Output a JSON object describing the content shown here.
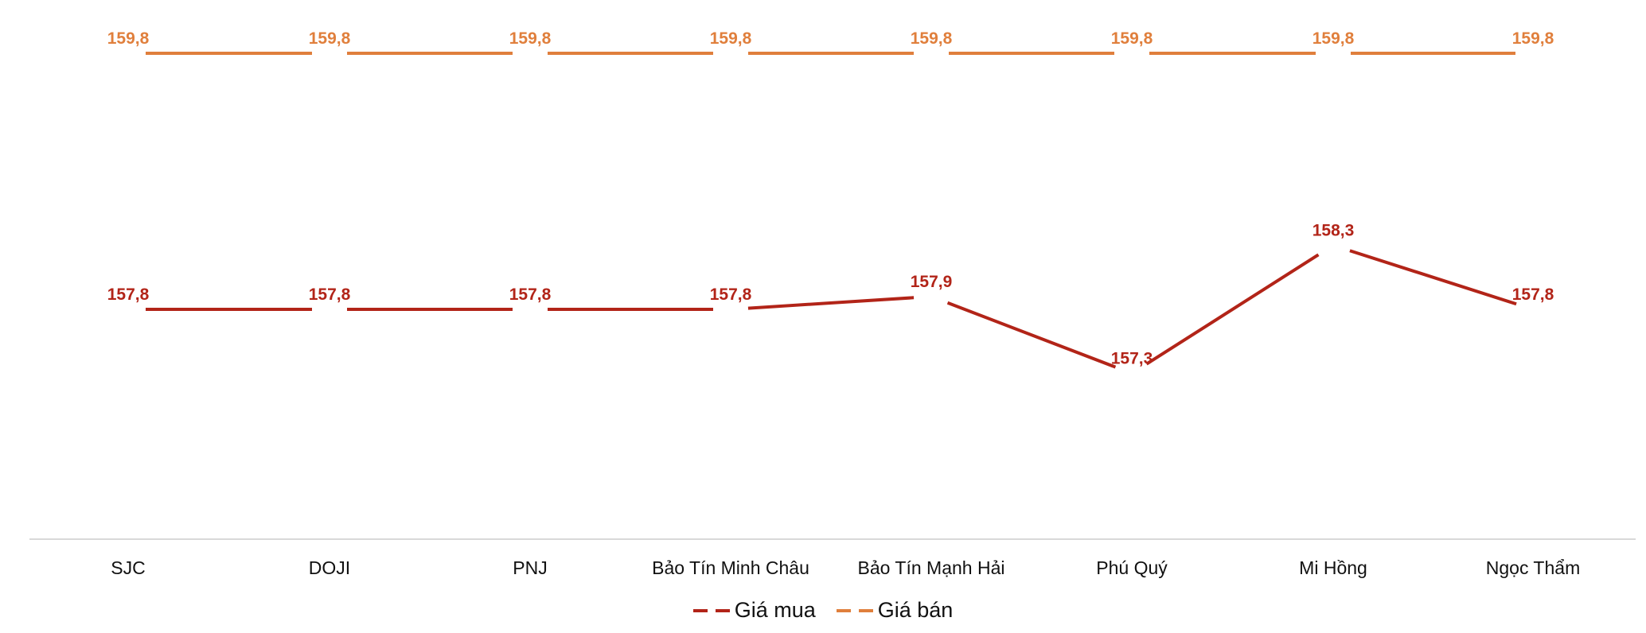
{
  "chart_data": {
    "type": "line",
    "title": "",
    "xlabel": "",
    "ylabel": "",
    "categories": [
      "SJC",
      "DOJI",
      "PNJ",
      "Bảo Tín Minh Châu",
      "Bảo Tín Mạnh Hải",
      "Phú Quý",
      "Mi Hồng",
      "Ngọc Thẩm"
    ],
    "series": [
      {
        "name": "Giá mua",
        "color": "#B22418",
        "values": [
          157.8,
          157.8,
          157.8,
          157.8,
          157.9,
          157.3,
          158.3,
          157.8
        ],
        "labels": [
          "157,8",
          "157,8",
          "157,8",
          "157,8",
          "157,9",
          "157,3",
          "158,3",
          "157,8"
        ]
      },
      {
        "name": "Giá bán",
        "color": "#E07F3C",
        "values": [
          159.8,
          159.8,
          159.8,
          159.8,
          159.8,
          159.8,
          159.8,
          159.8
        ],
        "labels": [
          "159,8",
          "159,8",
          "159,8",
          "159,8",
          "159,8",
          "159,8",
          "159,8",
          "159,8"
        ]
      }
    ],
    "grid": false,
    "y_axis_visible": false,
    "legend_position": "bottom",
    "data_labels": true
  },
  "legend": {
    "items": [
      {
        "label": "Giá mua",
        "color": "#B22418"
      },
      {
        "label": "Giá bán",
        "color": "#E07F3C"
      }
    ]
  }
}
